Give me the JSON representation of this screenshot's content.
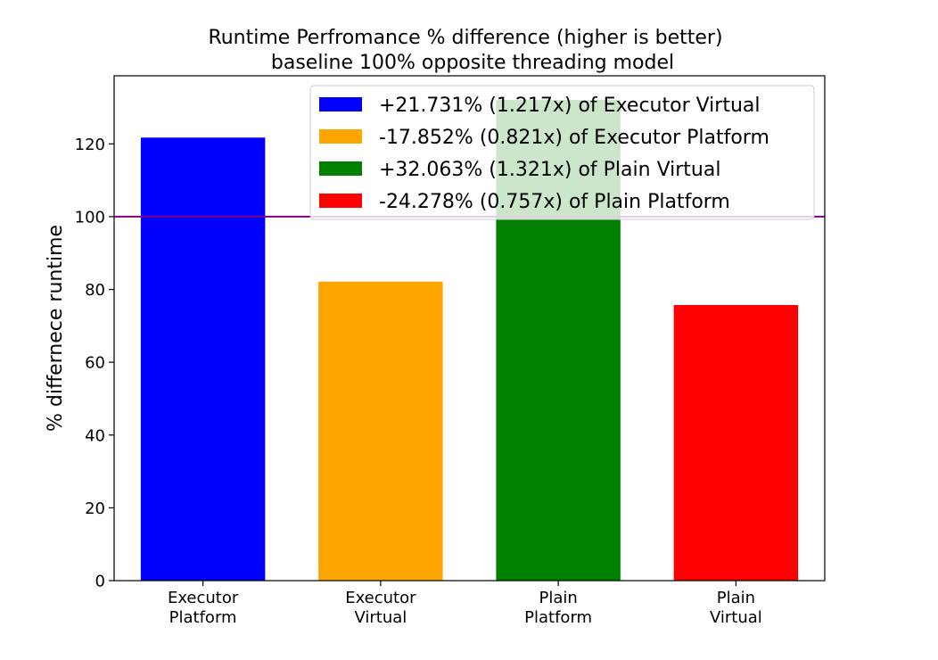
{
  "chart_data": {
    "type": "bar",
    "title": "Runtime Perfromance % difference (higher is better)",
    "subtitle": "baseline 100% opposite threading model",
    "xlabel": "",
    "ylabel": "% differnece runtime",
    "categories": [
      [
        "Executor",
        "Platform"
      ],
      [
        "Executor",
        "Virtual"
      ],
      [
        "Plain",
        "Platform"
      ],
      [
        "Plain",
        "Virtual"
      ]
    ],
    "values": [
      121.731,
      82.148,
      132.063,
      75.722
    ],
    "colors": [
      "#0000ff",
      "#ffa500",
      "#008000",
      "#ff0000"
    ],
    "ylim": [
      0,
      138.7
    ],
    "yticks": [
      0,
      20,
      40,
      60,
      80,
      100,
      120
    ],
    "reference_line": {
      "value": 100,
      "color": "#800080"
    },
    "legend": {
      "placement": "top-right",
      "entries": [
        {
          "label": "+21.731% (1.217x) of Executor Virtual",
          "color": "#0000ff"
        },
        {
          "label": "-17.852% (0.821x) of Executor Platform",
          "color": "#ffa500"
        },
        {
          "label": "+32.063% (1.321x) of Plain Virtual",
          "color": "#008000"
        },
        {
          "label": "-24.278% (0.757x) of Plain Platform",
          "color": "#ff0000"
        }
      ]
    },
    "grid": false
  }
}
